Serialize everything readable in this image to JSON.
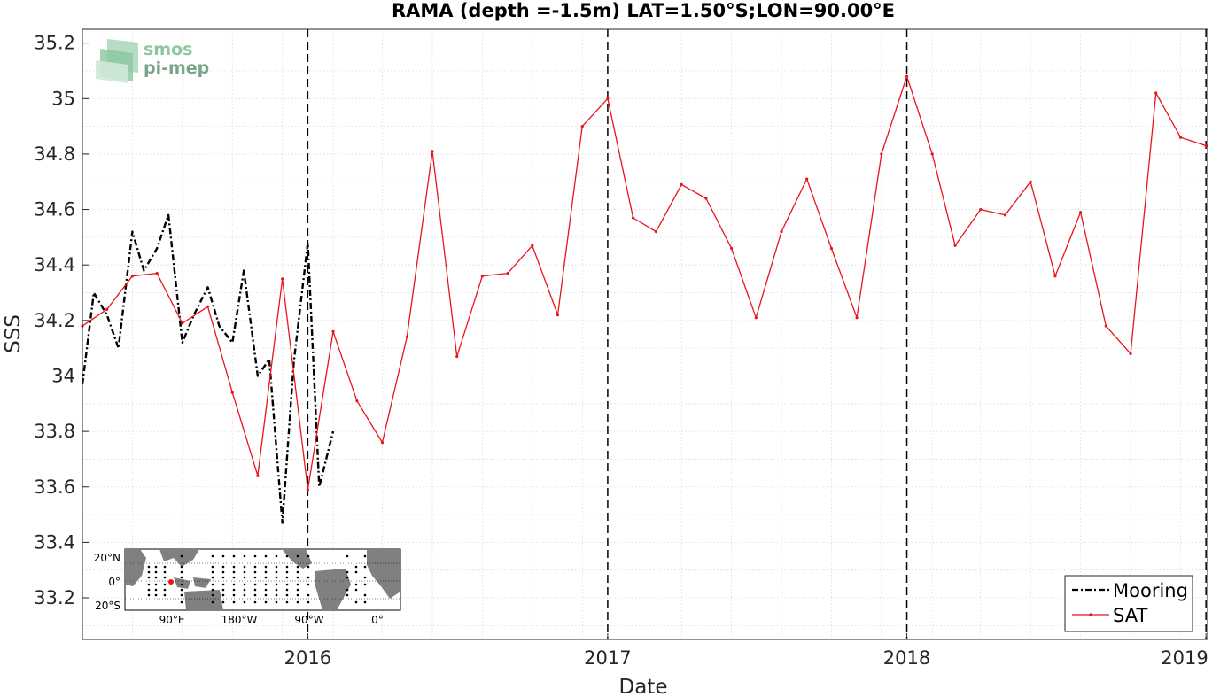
{
  "chart_data": {
    "type": "line",
    "title": "RAMA (depth =-1.5m) LAT=1.50°S;LON=90.00°E",
    "xlabel": "Date",
    "ylabel": "SSS",
    "xlim": [
      "2015-04-01",
      "2019-01-03"
    ],
    "ylim": [
      33.05,
      35.25
    ],
    "x_ticks": [
      "2016",
      "2017",
      "2018",
      "2019"
    ],
    "y_ticks": [
      33.2,
      33.4,
      33.6,
      33.8,
      34,
      34.2,
      34.4,
      34.6,
      34.8,
      35,
      35.2
    ],
    "grid": true,
    "year_markers": [
      "2016-01-01",
      "2017-01-01",
      "2018-01-01",
      "2019-01-01"
    ],
    "legend_position": "bottom-right",
    "series": [
      {
        "name": "Mooring",
        "color": "#000000",
        "line_style": "dash-dot",
        "x": [
          "2015-04-01",
          "2015-04-15",
          "2015-05-01",
          "2015-05-15",
          "2015-06-01",
          "2015-06-15",
          "2015-07-01",
          "2015-07-15",
          "2015-08-01",
          "2015-08-15",
          "2015-09-01",
          "2015-09-15",
          "2015-10-01",
          "2015-10-15",
          "2015-11-01",
          "2015-11-15",
          "2015-12-01",
          "2015-12-15",
          "2016-01-01",
          "2016-01-15",
          "2016-02-01"
        ],
        "y": [
          33.97,
          34.3,
          34.22,
          34.1,
          34.52,
          34.38,
          34.46,
          34.58,
          34.12,
          34.22,
          34.32,
          34.18,
          34.12,
          34.38,
          34.0,
          34.06,
          33.47,
          34.05,
          34.48,
          33.6,
          33.8
        ]
      },
      {
        "name": "SAT",
        "color": "#e8141c",
        "line_style": "solid-dot",
        "x": [
          "2015-04-01",
          "2015-05-01",
          "2015-06-01",
          "2015-07-01",
          "2015-08-01",
          "2015-09-01",
          "2015-10-01",
          "2015-11-01",
          "2015-12-01",
          "2016-01-01",
          "2016-02-01",
          "2016-03-01",
          "2016-04-01",
          "2016-05-01",
          "2016-06-01",
          "2016-07-01",
          "2016-08-01",
          "2016-09-01",
          "2016-10-01",
          "2016-11-01",
          "2016-12-01",
          "2017-01-01",
          "2017-02-01",
          "2017-03-01",
          "2017-04-01",
          "2017-05-01",
          "2017-06-01",
          "2017-07-01",
          "2017-08-01",
          "2017-09-01",
          "2017-10-01",
          "2017-11-01",
          "2017-12-01",
          "2018-01-01",
          "2018-02-01",
          "2018-03-01",
          "2018-04-01",
          "2018-05-01",
          "2018-06-01",
          "2018-07-01",
          "2018-08-01",
          "2018-09-01",
          "2018-10-01",
          "2018-11-01",
          "2018-12-01",
          "2019-01-01"
        ],
        "y": [
          34.18,
          34.24,
          34.36,
          34.37,
          34.19,
          34.25,
          33.94,
          33.64,
          34.35,
          33.59,
          34.16,
          33.91,
          33.76,
          34.14,
          34.81,
          34.07,
          34.36,
          34.37,
          34.47,
          34.22,
          34.9,
          35.0,
          34.57,
          34.52,
          34.69,
          34.64,
          34.46,
          34.21,
          34.52,
          34.71,
          34.46,
          34.21,
          34.8,
          35.08,
          34.8,
          34.47,
          34.6,
          34.58,
          34.7,
          34.36,
          34.59,
          34.18,
          34.08,
          35.02,
          34.86,
          34.83
        ]
      }
    ]
  },
  "legend": {
    "items": [
      {
        "label": "Mooring"
      },
      {
        "label": "SAT"
      }
    ]
  },
  "logo": {
    "line1": "smos",
    "line2": "pi-mep"
  },
  "inset_map": {
    "lat_labels": [
      "20°N",
      "0°",
      "20°S"
    ],
    "lon_labels": [
      "90°E",
      "180°W",
      "90°W",
      "0°"
    ]
  }
}
